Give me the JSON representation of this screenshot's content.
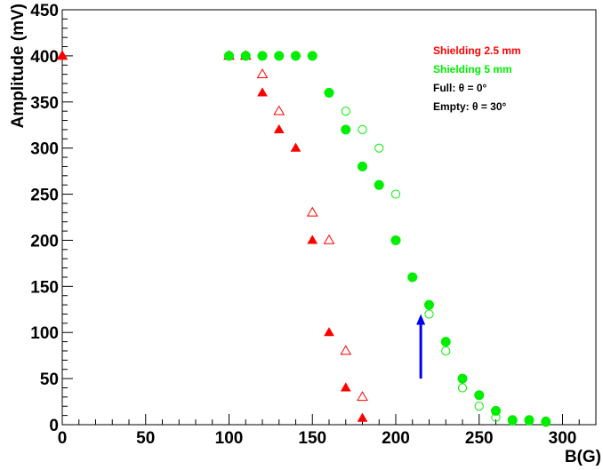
{
  "chart_data": {
    "type": "scatter",
    "xlabel": "B(G)",
    "ylabel": "Amplitude (mV)",
    "xlim": [
      0,
      320
    ],
    "ylim": [
      0,
      450
    ],
    "x_ticks": [
      "0",
      "50",
      "100",
      "150",
      "200",
      "250",
      "300"
    ],
    "y_ticks": [
      "0",
      "50",
      "100",
      "150",
      "200",
      "250",
      "300",
      "350",
      "400",
      "450"
    ],
    "legend": [
      {
        "text": "Shielding 2.5 mm",
        "color": "#ff0000"
      },
      {
        "text": "Shielding 5 mm",
        "color": "#00ee00"
      },
      {
        "text": "Full: θ = 0°",
        "color": "#000000"
      },
      {
        "text": "Empty: θ = 30°",
        "color": "#000000"
      }
    ],
    "legend_position": "top-right",
    "series": [
      {
        "color": "#ff0000",
        "marker": "triangle-filled",
        "x": [
          0,
          100,
          110,
          120,
          130,
          140,
          150,
          160,
          170,
          180
        ],
        "y": [
          400,
          400,
          400,
          360,
          320,
          300,
          200,
          100,
          40,
          7
        ]
      },
      {
        "color": "#ff0000",
        "marker": "triangle-open",
        "x": [
          0,
          100,
          110,
          120,
          130,
          150,
          160,
          170,
          180
        ],
        "y": [
          400,
          400,
          400,
          380,
          340,
          230,
          200,
          80,
          30
        ]
      },
      {
        "color": "#00ee00",
        "marker": "circle-filled",
        "x": [
          100,
          110,
          120,
          130,
          140,
          150,
          160,
          170,
          180,
          190,
          200,
          210,
          220,
          230,
          240,
          250,
          260,
          270,
          280,
          290
        ],
        "y": [
          400,
          400,
          400,
          400,
          400,
          400,
          360,
          320,
          280,
          260,
          200,
          160,
          130,
          90,
          50,
          32,
          15,
          5,
          5,
          3
        ]
      },
      {
        "color": "#00ee00",
        "marker": "circle-open",
        "x": [
          170,
          180,
          190,
          200,
          210,
          220,
          230,
          240,
          250,
          260,
          270,
          280,
          290
        ],
        "y": [
          340,
          320,
          300,
          250,
          160,
          120,
          80,
          40,
          20,
          8,
          4,
          4,
          4
        ]
      }
    ],
    "annotations": [
      {
        "type": "arrow",
        "color": "#0000ee",
        "from": [
          215,
          50
        ],
        "to": [
          215,
          120
        ]
      }
    ]
  }
}
